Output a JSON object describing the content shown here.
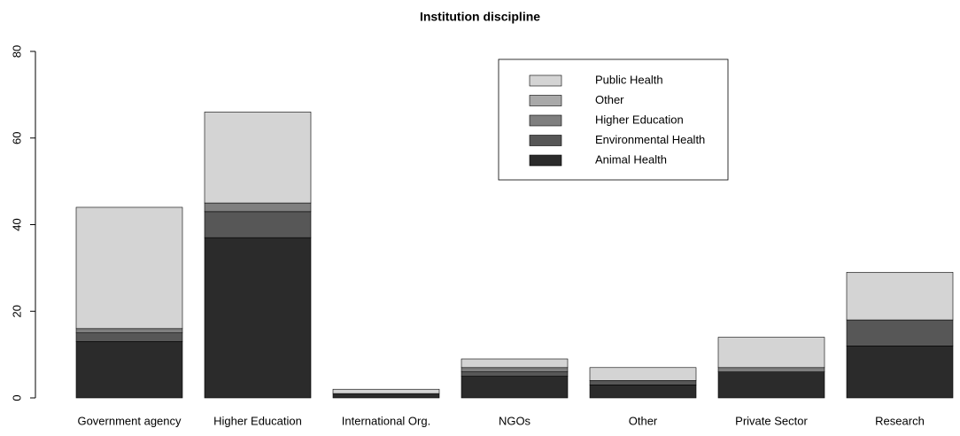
{
  "chart_data": {
    "type": "bar",
    "stacked": true,
    "title": "Institution discipline",
    "categories": [
      "Government agency",
      "Higher Education",
      "International Org.",
      "NGOs",
      "Other",
      "Private Sector",
      "Research"
    ],
    "series": [
      {
        "name": "Animal Health",
        "color": "#2b2b2b",
        "values": [
          13,
          37,
          1,
          5,
          3,
          6,
          12
        ]
      },
      {
        "name": "Environmental Health",
        "color": "#575757",
        "values": [
          2,
          6,
          0,
          1,
          1,
          0,
          6
        ]
      },
      {
        "name": "Higher Education",
        "color": "#7f7f7f",
        "values": [
          1,
          2,
          0,
          1,
          0,
          1,
          0
        ]
      },
      {
        "name": "Other",
        "color": "#a9a9a9",
        "values": [
          0,
          0,
          0,
          0,
          0,
          0,
          0
        ]
      },
      {
        "name": "Public Health",
        "color": "#d4d4d4",
        "values": [
          28,
          21,
          1,
          2,
          3,
          7,
          11
        ]
      }
    ],
    "ylim": [
      0,
      80
    ],
    "yticks": [
      0,
      20,
      40,
      60,
      80
    ],
    "grid": false,
    "legend": "top-right"
  }
}
